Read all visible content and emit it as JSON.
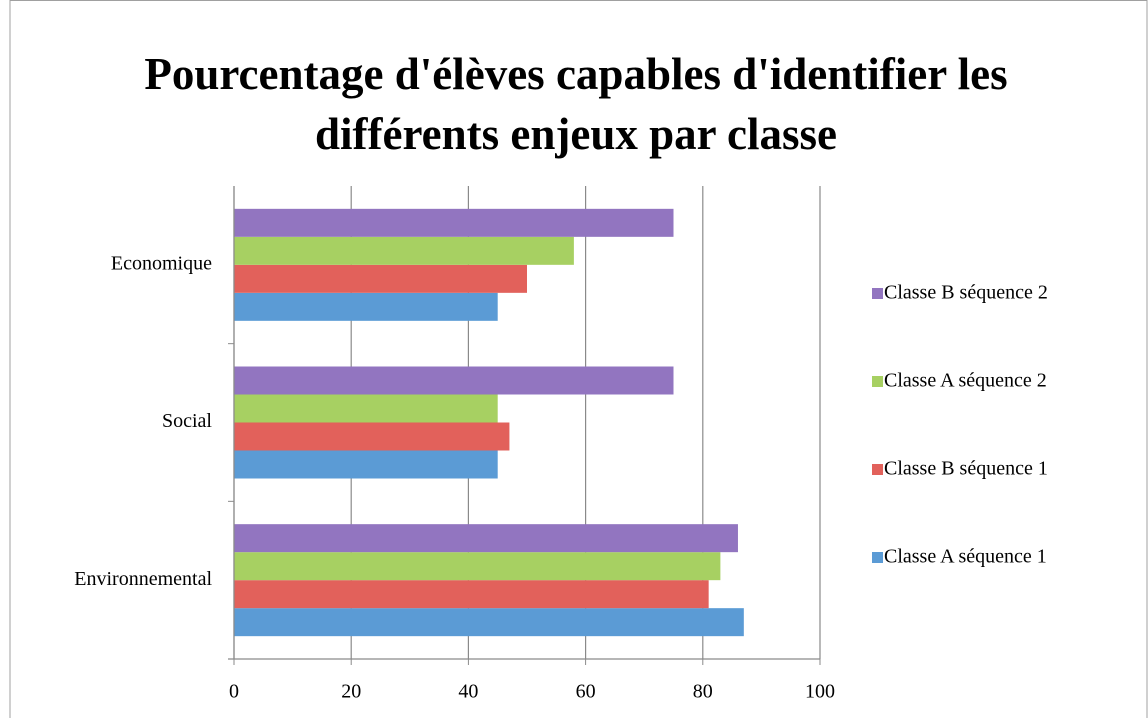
{
  "chart_data": {
    "type": "barh",
    "title": "Pourcentage d'élèves capables d'identifier les différents enjeux par classe",
    "categories": [
      "Environnemental",
      "Social",
      "Economique"
    ],
    "series": [
      {
        "name": "Classe A séquence 1",
        "color": "#5b9bd5",
        "values": [
          87,
          45,
          45
        ]
      },
      {
        "name": "Classe B séquence 1",
        "color": "#e2615b",
        "values": [
          81,
          47,
          50
        ]
      },
      {
        "name": "Classe A séquence 2",
        "color": "#a7d062",
        "values": [
          83,
          45,
          58
        ]
      },
      {
        "name": "Classe B séquence 2",
        "color": "#9275c0",
        "values": [
          86,
          75,
          75
        ]
      }
    ],
    "xlim": [
      0,
      100
    ],
    "xticks": [
      0,
      20,
      40,
      60,
      80,
      100
    ],
    "grid": true,
    "legend": "right"
  }
}
